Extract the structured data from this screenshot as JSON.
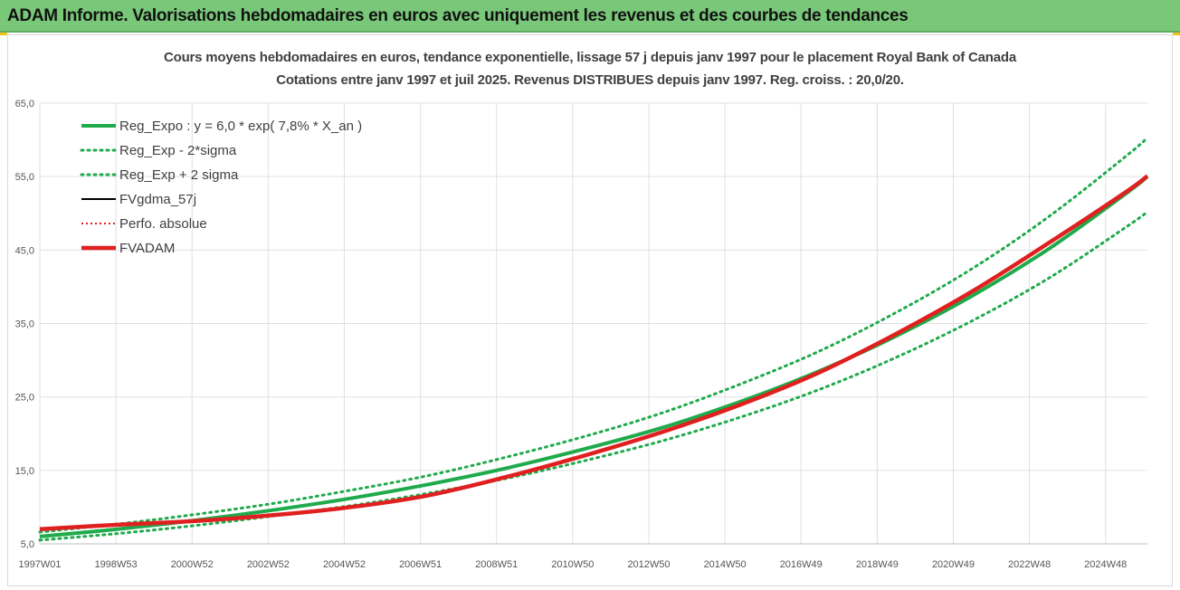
{
  "banner": {
    "title": "ADAM Informe. Valorisations hebdomadaires en euros avec uniquement les revenus et des courbes de tendances"
  },
  "colors": {
    "banner": "#79c879",
    "reg_expo": "#1faa4b",
    "fvgdma": "#000000",
    "perfo": "#e02020",
    "fvadam": "#e02020",
    "grid": "#e0e0e0"
  },
  "chart_data": {
    "type": "line",
    "title": "Cours moyens hebdomadaires en euros, tendance exponentielle, lissage 57 j depuis janv 1997  pour le placement Royal Bank of Canada",
    "subtitle": "Cotations entre janv 1997 et juil 2025. Revenus DISTRIBUES depuis janv 1997. Reg. croiss. : 20,0/20.",
    "ylim": [
      5,
      65
    ],
    "y_ticks": [
      "5,0",
      "15,0",
      "25,0",
      "35,0",
      "45,0",
      "55,0",
      "65,0"
    ],
    "x_ticks": [
      "1997W01",
      "1998W53",
      "2000W52",
      "2002W52",
      "2004W52",
      "2006W51",
      "2008W51",
      "2010W50",
      "2012W50",
      "2014W50",
      "2016W49",
      "2018W49",
      "2020W49",
      "2022W48",
      "2024W48"
    ],
    "grid": true,
    "legend_position": "top-left",
    "x": [
      0,
      2,
      4,
      6,
      8,
      10,
      12,
      14,
      16,
      18,
      20,
      22,
      24,
      26,
      28,
      28.5
    ],
    "series": [
      {
        "name": "Reg_Expo : y = 6,0 * exp( 7,8% *  X_an )",
        "style": "solid",
        "color": "#1faa4b",
        "values": [
          6.0,
          7.0,
          8.2,
          9.6,
          11.2,
          13.1,
          15.3,
          17.9,
          20.8,
          24.3,
          28.4,
          33.2,
          38.8,
          45.3,
          52.9,
          55.0
        ]
      },
      {
        "name": "Reg_Exp - 2*sigma",
        "style": "dotted",
        "color": "#1faa4b",
        "values": [
          5.5,
          6.4,
          7.5,
          8.8,
          10.2,
          11.9,
          13.9,
          16.3,
          19.0,
          22.2,
          25.9,
          30.3,
          35.4,
          41.3,
          48.3,
          50.2
        ]
      },
      {
        "name": "Reg_Exp + 2 sigma",
        "style": "dotted",
        "color": "#1faa4b",
        "values": [
          6.6,
          7.7,
          9.0,
          10.5,
          12.3,
          14.3,
          16.8,
          19.6,
          22.8,
          26.7,
          31.1,
          36.4,
          42.5,
          49.7,
          58.0,
          60.3
        ]
      },
      {
        "name": "FVgdma_57j",
        "style": "solid",
        "color": "#000000",
        "values": [
          7.0,
          7.6,
          8.1,
          8.9,
          10.0,
          11.6,
          14.0,
          16.9,
          20.1,
          23.8,
          28.1,
          33.4,
          39.3,
          46.0,
          53.0,
          55.0
        ]
      },
      {
        "name": "Perfo. absolue",
        "style": "dotted",
        "color": "#e02020",
        "values": [
          7.0,
          7.6,
          8.1,
          8.9,
          10.0,
          11.6,
          14.1,
          17.0,
          20.2,
          23.9,
          28.2,
          33.5,
          39.4,
          46.1,
          53.1,
          55.1
        ]
      },
      {
        "name": "FVADAM",
        "style": "solid",
        "color": "#e02020",
        "values": [
          7.0,
          7.6,
          8.1,
          8.9,
          10.0,
          11.6,
          14.1,
          17.0,
          20.2,
          23.9,
          28.2,
          33.5,
          39.4,
          46.1,
          53.1,
          55.1
        ]
      }
    ]
  }
}
